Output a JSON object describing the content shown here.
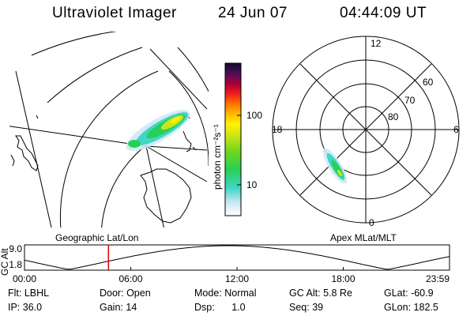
{
  "header": {
    "title": "Ultraviolet Imager",
    "date": "24 Jun 07",
    "time": "04:44:09 UT"
  },
  "panels": {
    "geographic_label": "Geographic Lat/Lon",
    "apex_label": "Apex MLat/MLT"
  },
  "colorbar": {
    "unit_label": "photon cm⁻²s⁻¹",
    "scale": "log",
    "range": [
      2,
      600
    ],
    "ticks": [
      {
        "value": 100,
        "label": "100"
      },
      {
        "value": 10,
        "label": "10"
      }
    ]
  },
  "polar_plot": {
    "mlt_labels": {
      "top": "12",
      "left": "18",
      "right": "6",
      "bottom": "0"
    },
    "lat_labels": [
      "60",
      "70",
      "80"
    ]
  },
  "altitude_plot": {
    "axis_label": "GC Alt",
    "y_ticks": [
      "9.0",
      "1.8"
    ],
    "x_ticks": [
      "00:00",
      "06:00",
      "12:00",
      "18:00",
      "23:59"
    ],
    "current_time_marker_hours": 4.74,
    "marker_color": "#e00000"
  },
  "info": {
    "row1": [
      {
        "key": "Flt:",
        "value": "LBHL"
      },
      {
        "key": "Door:",
        "value": "Open"
      },
      {
        "key": "Mode:",
        "value": "Normal"
      },
      {
        "key": "GC Alt:",
        "value": "5.8 Re"
      },
      {
        "key": "GLat:",
        "value": "-60.9"
      }
    ],
    "row2": [
      {
        "key": "IP:",
        "value": "36.0"
      },
      {
        "key": "Gain:",
        "value": "14"
      },
      {
        "key": "Dsp:",
        "value": "1.0"
      },
      {
        "key": "Seq:",
        "value": "39"
      },
      {
        "key": "GLon:",
        "value": "182.5"
      }
    ]
  }
}
